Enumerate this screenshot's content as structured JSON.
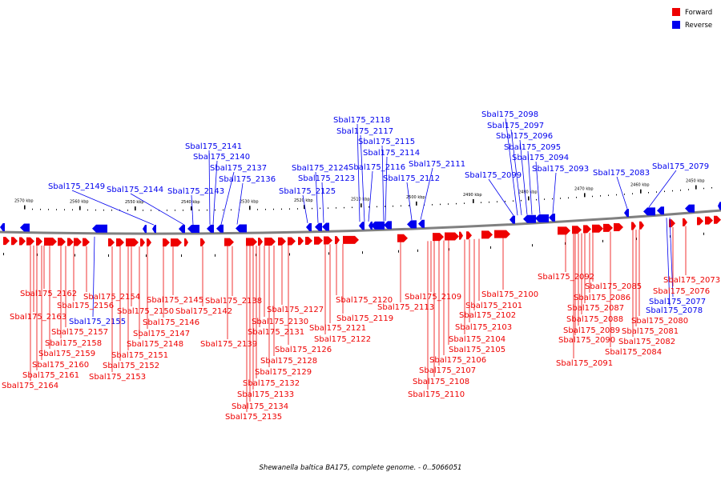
{
  "caption": "Shewanella baltica BA175, complete genome. - 0..5066051",
  "legend": [
    {
      "label": "Forward",
      "color": "#ee0000"
    },
    {
      "label": "Reverse",
      "color": "#0000ee"
    }
  ],
  "colors": {
    "forward": "#ee0000",
    "reverse": "#0000ee",
    "backbone": "#808080"
  },
  "scale_labels": [
    "2570 kbp",
    "2560 kbp",
    "2550 kbp",
    "2540 kbp",
    "2530 kbp",
    "2520 kbp",
    "2510 kbp",
    "2500 kbp",
    "2490 kbp",
    "2480 kbp",
    "2470 kbp",
    "2460 kbp",
    "2450 kbp"
  ],
  "reverse_genes": [
    "Sbal175_2149",
    "Sbal175_2144",
    "Sbal175_2143",
    "Sbal175_2141",
    "Sbal175_2140",
    "Sbal175_2137",
    "Sbal175_2136",
    "Sbal175_2125",
    "Sbal175_2124",
    "Sbal175_2123",
    "Sbal175_2118",
    "Sbal175_2117",
    "Sbal175_2116",
    "Sbal175_2115",
    "Sbal175_2114",
    "Sbal175_2112",
    "Sbal175_2111",
    "Sbal175_2099",
    "Sbal175_2098",
    "Sbal175_2097",
    "Sbal175_2096",
    "Sbal175_2095",
    "Sbal175_2094",
    "Sbal175_2093",
    "Sbal175_2083",
    "Sbal175_2079",
    "Sbal175_2155",
    "Sbal175_2078",
    "Sbal175_2077"
  ],
  "forward_genes": [
    "Sbal175_2162",
    "Sbal175_2163",
    "Sbal175_2164",
    "Sbal175_2161",
    "Sbal175_2160",
    "Sbal175_2159",
    "Sbal175_2158",
    "Sbal175_2157",
    "Sbal175_2156",
    "Sbal175_2154",
    "Sbal175_2153",
    "Sbal175_2152",
    "Sbal175_2151",
    "Sbal175_2150",
    "Sbal175_2148",
    "Sbal175_2147",
    "Sbal175_2146",
    "Sbal175_2145",
    "Sbal175_2142",
    "Sbal175_2139",
    "Sbal175_2138",
    "Sbal175_2135",
    "Sbal175_2134",
    "Sbal175_2133",
    "Sbal175_2132",
    "Sbal175_2131",
    "Sbal175_2130",
    "Sbal175_2129",
    "Sbal175_2128",
    "Sbal175_2127",
    "Sbal175_2126",
    "Sbal175_2122",
    "Sbal175_2121",
    "Sbal175_2120",
    "Sbal175_2119",
    "Sbal175_2113",
    "Sbal175_2110",
    "Sbal175_2109",
    "Sbal175_2108",
    "Sbal175_2107",
    "Sbal175_2106",
    "Sbal175_2105",
    "Sbal175_2104",
    "Sbal175_2103",
    "Sbal175_2102",
    "Sbal175_2101",
    "Sbal175_2100",
    "Sbal175_2092",
    "Sbal175_2091",
    "Sbal175_2090",
    "Sbal175_2089",
    "Sbal175_2088",
    "Sbal175_2087",
    "Sbal175_2086",
    "Sbal175_2085",
    "Sbal175_2084",
    "Sbal175_2082",
    "Sbal175_2081",
    "Sbal175_2080",
    "Sbal175_2076",
    "Sbal175_2073"
  ]
}
